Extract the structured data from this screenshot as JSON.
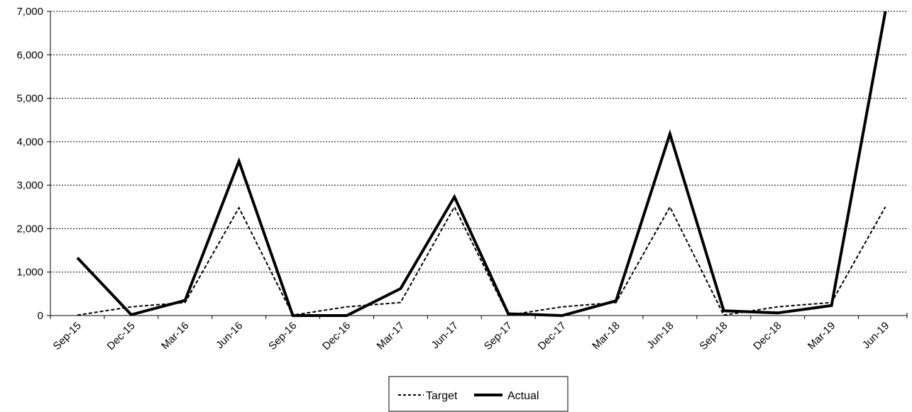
{
  "chart_data": {
    "type": "line",
    "title": "",
    "xlabel": "",
    "ylabel": "",
    "categories": [
      "Sep-15",
      "Dec-15",
      "Mar-16",
      "Jun-16",
      "Sep-16",
      "Dec-16",
      "Mar-17",
      "Jun-17",
      "Sep-17",
      "Dec-17",
      "Mar-18",
      "Jun-18",
      "Sep-18",
      "Dec-18",
      "Mar-19",
      "Jun-19"
    ],
    "ylim": [
      0,
      7000
    ],
    "yticks": [
      0,
      1000,
      2000,
      3000,
      4000,
      5000,
      6000,
      7000
    ],
    "ytick_labels": [
      "0",
      "1,000",
      "2,000",
      "3,000",
      "4,000",
      "5,000",
      "6,000",
      "7,000"
    ],
    "grid": "horizontal dotted",
    "legend_position": "bottom-center",
    "series": [
      {
        "name": "Target",
        "style": "dashed",
        "color": "#000000",
        "values": [
          10,
          200,
          300,
          2480,
          10,
          200,
          300,
          2500,
          10,
          200,
          300,
          2500,
          10,
          200,
          300,
          2500
        ]
      },
      {
        "name": "Actual",
        "style": "solid-thick",
        "color": "#000000",
        "values": [
          1330,
          20,
          350,
          3550,
          0,
          0,
          620,
          2730,
          40,
          0,
          340,
          4180,
          110,
          60,
          230,
          7000
        ]
      }
    ]
  }
}
